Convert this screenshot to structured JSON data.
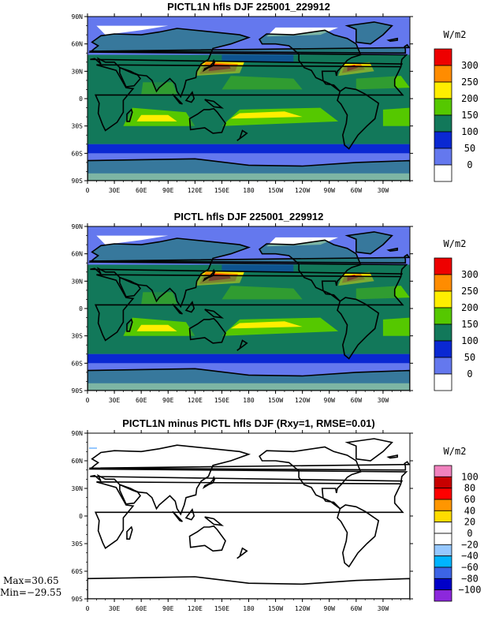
{
  "panels": [
    {
      "title": "PICTL1N hfls DJF 225001_229912",
      "units": "W/m2",
      "colorbar": {
        "labels": [
          "300",
          "250",
          "200",
          "150",
          "100",
          "50",
          "0"
        ],
        "colors": [
          "#ee0000",
          "#ff8c00",
          "#ffee00",
          "#55c800",
          "#12785a",
          "#0a28d2",
          "#6478ee",
          "#ffffff"
        ]
      },
      "type": "mean"
    },
    {
      "title": "PICTL hfls DJF 225001_229912",
      "units": "W/m2",
      "colorbar": {
        "labels": [
          "300",
          "250",
          "200",
          "150",
          "100",
          "50",
          "0"
        ],
        "colors": [
          "#ee0000",
          "#ff8c00",
          "#ffee00",
          "#55c800",
          "#12785a",
          "#0a28d2",
          "#6478ee",
          "#ffffff"
        ]
      },
      "type": "mean"
    },
    {
      "title": "PICTL1N minus PICTL hfls DJF (Rxy=1, RMSE=0.01)",
      "units": "W/m2",
      "colorbar": {
        "labels": [
          "100",
          "80",
          "60",
          "40",
          "20",
          "0",
          "−20",
          "−40",
          "−60",
          "−80",
          "−100"
        ],
        "colors": [
          "#f082be",
          "#c80000",
          "#ff0000",
          "#ff9600",
          "#ffdc00",
          "#ffffff",
          "#ffffff",
          "#96c8ff",
          "#00b4ff",
          "#3c64e6",
          "#0000c8",
          "#8c28dc"
        ]
      },
      "type": "diff"
    }
  ],
  "lat_labels": [
    "90N",
    "60N",
    "30N",
    "0",
    "30S",
    "60S",
    "90S"
  ],
  "lon_labels": [
    "0",
    "30E",
    "60E",
    "90E",
    "120E",
    "150E",
    "180",
    "150W",
    "120W",
    "90W",
    "60W",
    "30W"
  ],
  "stats": {
    "max": "Max=30.65",
    "min": "Min=−29.55"
  }
}
